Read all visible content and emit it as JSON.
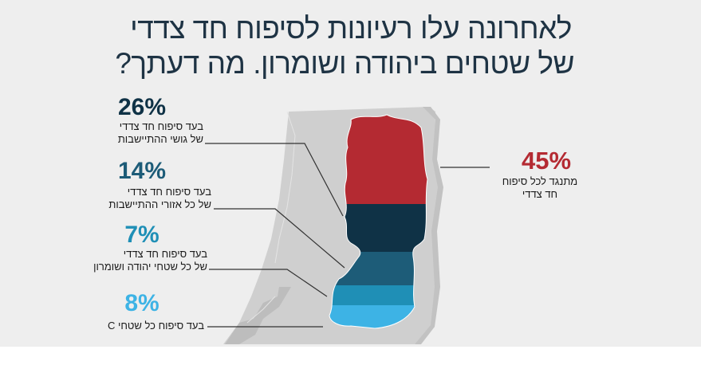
{
  "chart_data": {
    "type": "pie",
    "title": [
      "לאחרונה עלו רעיונות לסיפוח חד צדדי",
      "של שטחים ביהודה ושומרון. מה דעתך?"
    ],
    "slices": [
      {
        "value": 45,
        "label": "45%",
        "text": [
          "מתנגד לכל סיפוח",
          "חד צדדי"
        ],
        "color": "#b42a32"
      },
      {
        "value": 26,
        "label": "26%",
        "text": [
          "בעד סיפוח חד צדדי",
          "של גושי ההתיישבות"
        ],
        "color": "#0f3246"
      },
      {
        "value": 14,
        "label": "14%",
        "text": [
          "בעד סיפוח חד צדדי",
          "של כל אזורי ההתיישבות"
        ],
        "color": "#1d5c78"
      },
      {
        "value": 7,
        "label": "7%",
        "text": [
          "בעד סיפוח חד צדדי",
          "של כל שטחי יהודה ושומרון"
        ],
        "color": "#1f8fb6"
      },
      {
        "value": 8,
        "label": "8%",
        "text": [
          "בעד סיפוח כל שטחי C"
        ],
        "color": "#3db3e5"
      }
    ]
  }
}
